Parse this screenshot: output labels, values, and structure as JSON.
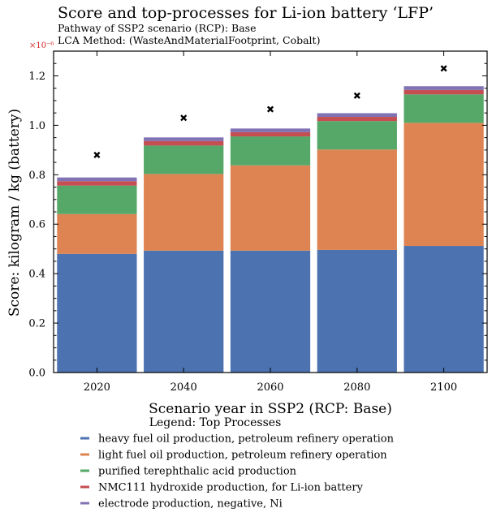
{
  "chart_data": {
    "type": "bar",
    "stacked": true,
    "title": "Score and top-processes for Li-ion battery ‘LFP’",
    "subtitle_lines": [
      "Pathway of SSP2 scenario (RCP): Base",
      "LCA Method: (WasteAndMaterialFootprint, Cobalt)"
    ],
    "sci_offset": "×10⁻⁶",
    "xlabel": "Scenario year in SSP2 (RCP: Base)",
    "ylabel": "Score: kilogram / kg (battery)",
    "categories": [
      "2020",
      "2040",
      "2060",
      "2080",
      "2100"
    ],
    "ylim": [
      0,
      1.3
    ],
    "yticks": [
      "0.0",
      "0.2",
      "0.4",
      "0.6",
      "0.8",
      "1.0",
      "1.2"
    ],
    "legend_title": "Legend: Top Processes",
    "series": [
      {
        "name": "heavy fuel oil production, petroleum refinery operation",
        "color": "#4c72b0",
        "values": [
          0.48,
          0.493,
          0.493,
          0.496,
          0.512
        ]
      },
      {
        "name": "light fuel oil production, petroleum refinery operation",
        "color": "#dd8452",
        "values": [
          0.161,
          0.31,
          0.345,
          0.406,
          0.498
        ]
      },
      {
        "name": "purified terephthalic acid production",
        "color": "#55a868",
        "values": [
          0.115,
          0.115,
          0.117,
          0.115,
          0.115
        ]
      },
      {
        "name": "NMC111 hydroxide production, for Li-ion battery",
        "color": "#c44e52",
        "values": [
          0.018,
          0.018,
          0.017,
          0.017,
          0.018
        ]
      },
      {
        "name": "electrode production, negative, Ni",
        "color": "#8172b3",
        "values": [
          0.015,
          0.015,
          0.015,
          0.015,
          0.015
        ]
      }
    ],
    "total_markers": [
      0.88,
      1.03,
      1.065,
      1.12,
      1.23
    ]
  }
}
